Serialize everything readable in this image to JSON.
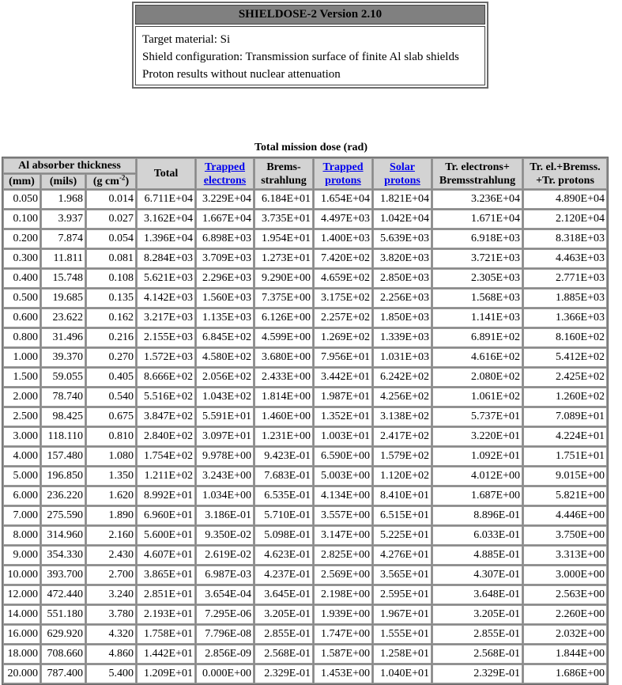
{
  "header": {
    "title": "SHIELDOSE-2 Version 2.10",
    "lines": [
      "Target material: Si",
      "Shield configuration: Transmission surface of finite Al slab shields",
      "Proton results without nuclear attenuation"
    ]
  },
  "table": {
    "caption": "Total mission dose (rad)",
    "group_header": "Al absorber thickness",
    "unit_headers": [
      "(mm)",
      "(mils)",
      "(g cm",
      "-2",
      ")"
    ],
    "columns": {
      "total": "Total",
      "trapped_electrons": [
        "Trapped",
        "electrons"
      ],
      "bremsstrahlung": [
        "Brems-",
        "strahlung"
      ],
      "trapped_protons": [
        "Trapped",
        "protons"
      ],
      "solar_protons": [
        "Solar",
        "protons"
      ],
      "tr_electrons_brems": [
        "Tr. electrons+",
        "Bremsstrahlung"
      ],
      "tr_el_brems_tr_protons": [
        "Tr. el.+Bremss.",
        "+Tr. protons"
      ]
    },
    "rows": [
      [
        "0.050",
        "1.968",
        "0.014",
        "6.711E+04",
        "3.229E+04",
        "6.184E+01",
        "1.654E+04",
        "1.821E+04",
        "3.236E+04",
        "4.890E+04"
      ],
      [
        "0.100",
        "3.937",
        "0.027",
        "3.162E+04",
        "1.667E+04",
        "3.735E+01",
        "4.497E+03",
        "1.042E+04",
        "1.671E+04",
        "2.120E+04"
      ],
      [
        "0.200",
        "7.874",
        "0.054",
        "1.396E+04",
        "6.898E+03",
        "1.954E+01",
        "1.400E+03",
        "5.639E+03",
        "6.918E+03",
        "8.318E+03"
      ],
      [
        "0.300",
        "11.811",
        "0.081",
        "8.284E+03",
        "3.709E+03",
        "1.273E+01",
        "7.420E+02",
        "3.820E+03",
        "3.721E+03",
        "4.463E+03"
      ],
      [
        "0.400",
        "15.748",
        "0.108",
        "5.621E+03",
        "2.296E+03",
        "9.290E+00",
        "4.659E+02",
        "2.850E+03",
        "2.305E+03",
        "2.771E+03"
      ],
      [
        "0.500",
        "19.685",
        "0.135",
        "4.142E+03",
        "1.560E+03",
        "7.375E+00",
        "3.175E+02",
        "2.256E+03",
        "1.568E+03",
        "1.885E+03"
      ],
      [
        "0.600",
        "23.622",
        "0.162",
        "3.217E+03",
        "1.135E+03",
        "6.126E+00",
        "2.257E+02",
        "1.850E+03",
        "1.141E+03",
        "1.366E+03"
      ],
      [
        "0.800",
        "31.496",
        "0.216",
        "2.155E+03",
        "6.845E+02",
        "4.599E+00",
        "1.269E+02",
        "1.339E+03",
        "6.891E+02",
        "8.160E+02"
      ],
      [
        "1.000",
        "39.370",
        "0.270",
        "1.572E+03",
        "4.580E+02",
        "3.680E+00",
        "7.956E+01",
        "1.031E+03",
        "4.616E+02",
        "5.412E+02"
      ],
      [
        "1.500",
        "59.055",
        "0.405",
        "8.666E+02",
        "2.056E+02",
        "2.433E+00",
        "3.442E+01",
        "6.242E+02",
        "2.080E+02",
        "2.425E+02"
      ],
      [
        "2.000",
        "78.740",
        "0.540",
        "5.516E+02",
        "1.043E+02",
        "1.814E+00",
        "1.987E+01",
        "4.256E+02",
        "1.061E+02",
        "1.260E+02"
      ],
      [
        "2.500",
        "98.425",
        "0.675",
        "3.847E+02",
        "5.591E+01",
        "1.460E+00",
        "1.352E+01",
        "3.138E+02",
        "5.737E+01",
        "7.089E+01"
      ],
      [
        "3.000",
        "118.110",
        "0.810",
        "2.840E+02",
        "3.097E+01",
        "1.231E+00",
        "1.003E+01",
        "2.417E+02",
        "3.220E+01",
        "4.224E+01"
      ],
      [
        "4.000",
        "157.480",
        "1.080",
        "1.754E+02",
        "9.978E+00",
        "9.423E-01",
        "6.590E+00",
        "1.579E+02",
        "1.092E+01",
        "1.751E+01"
      ],
      [
        "5.000",
        "196.850",
        "1.350",
        "1.211E+02",
        "3.243E+00",
        "7.683E-01",
        "5.003E+00",
        "1.120E+02",
        "4.012E+00",
        "9.015E+00"
      ],
      [
        "6.000",
        "236.220",
        "1.620",
        "8.992E+01",
        "1.034E+00",
        "6.535E-01",
        "4.134E+00",
        "8.410E+01",
        "1.687E+00",
        "5.821E+00"
      ],
      [
        "7.000",
        "275.590",
        "1.890",
        "6.960E+01",
        "3.186E-01",
        "5.710E-01",
        "3.557E+00",
        "6.515E+01",
        "8.896E-01",
        "4.446E+00"
      ],
      [
        "8.000",
        "314.960",
        "2.160",
        "5.600E+01",
        "9.350E-02",
        "5.098E-01",
        "3.147E+00",
        "5.225E+01",
        "6.033E-01",
        "3.750E+00"
      ],
      [
        "9.000",
        "354.330",
        "2.430",
        "4.607E+01",
        "2.619E-02",
        "4.623E-01",
        "2.825E+00",
        "4.276E+01",
        "4.885E-01",
        "3.313E+00"
      ],
      [
        "10.000",
        "393.700",
        "2.700",
        "3.865E+01",
        "6.987E-03",
        "4.237E-01",
        "2.569E+00",
        "3.565E+01",
        "4.307E-01",
        "3.000E+00"
      ],
      [
        "12.000",
        "472.440",
        "3.240",
        "2.851E+01",
        "3.654E-04",
        "3.645E-01",
        "2.198E+00",
        "2.595E+01",
        "3.648E-01",
        "2.563E+00"
      ],
      [
        "14.000",
        "551.180",
        "3.780",
        "2.193E+01",
        "7.295E-06",
        "3.205E-01",
        "1.939E+00",
        "1.967E+01",
        "3.205E-01",
        "2.260E+00"
      ],
      [
        "16.000",
        "629.920",
        "4.320",
        "1.758E+01",
        "7.796E-08",
        "2.855E-01",
        "1.747E+00",
        "1.555E+01",
        "2.855E-01",
        "2.032E+00"
      ],
      [
        "18.000",
        "708.660",
        "4.860",
        "1.442E+01",
        "2.856E-09",
        "2.568E-01",
        "1.587E+00",
        "1.258E+01",
        "2.568E-01",
        "1.844E+00"
      ],
      [
        "20.000",
        "787.400",
        "5.400",
        "1.209E+01",
        "0.000E+00",
        "2.329E-01",
        "1.453E+00",
        "1.040E+01",
        "2.329E-01",
        "1.686E+00"
      ]
    ]
  }
}
